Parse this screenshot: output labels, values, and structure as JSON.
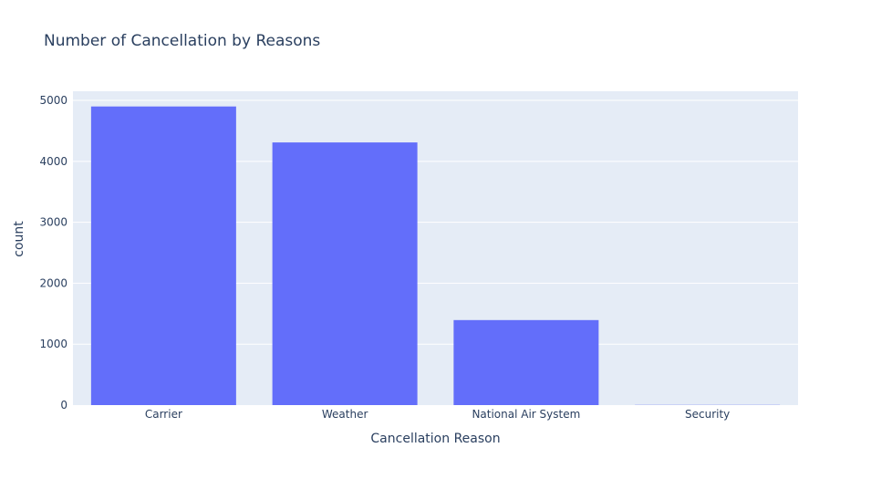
{
  "chart_data": {
    "type": "bar",
    "title": "Number of Cancellation by Reasons",
    "xlabel": "Cancellation Reason",
    "ylabel": "count",
    "categories": [
      "Carrier",
      "Weather",
      "National Air System",
      "Security"
    ],
    "values": [
      4900,
      4310,
      1395,
      3
    ],
    "ylim": [
      0,
      5150
    ],
    "yticks": [
      0,
      1000,
      2000,
      3000,
      4000,
      5000
    ],
    "ytick_labels": [
      "0",
      "1000",
      "2000",
      "3000",
      "4000",
      "5000"
    ],
    "grid": true,
    "legend": "none",
    "colors": {
      "bar": "#636efa",
      "plot_bg": "#e5ecf6",
      "grid": "#ffffff",
      "text": "#2a3f5f",
      "paper_bg": "#ffffff"
    }
  }
}
